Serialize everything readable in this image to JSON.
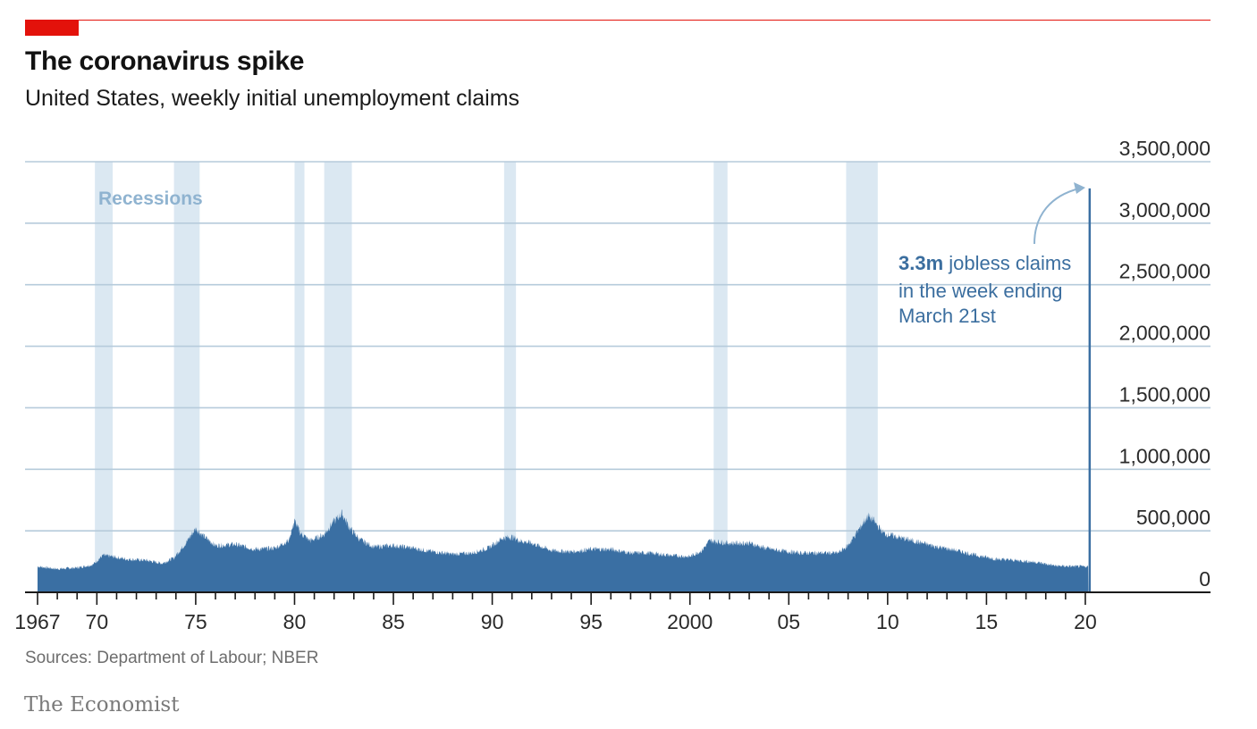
{
  "header": {
    "title": "The coronavirus spike",
    "subtitle": "United States, weekly initial unemployment claims"
  },
  "footer": {
    "source": "Sources: Department of Labour; NBER",
    "brand": "The Economist"
  },
  "colors": {
    "accent": "#e3120b",
    "series": "#3a6fa3",
    "recession": "#dbe8f2",
    "annotation": "#3b6e9f",
    "recession_label": "#8fb3d0",
    "grid": "#b6cbdb"
  },
  "chart_data": {
    "type": "area",
    "ylim": [
      0,
      3500000
    ],
    "xlim": [
      1967.0,
      2020.25
    ],
    "yticks": [
      0,
      500000,
      1000000,
      1500000,
      2000000,
      2500000,
      3000000,
      3500000
    ],
    "ytick_labels": [
      "0",
      "500,000",
      "1,000,000",
      "1,500,000",
      "2,000,000",
      "2,500,000",
      "3,000,000",
      "3,500,000"
    ],
    "xtick_labels": [
      {
        "x": 1967,
        "label": "1967"
      },
      {
        "x": 1970,
        "label": "70"
      },
      {
        "x": 1975,
        "label": "75"
      },
      {
        "x": 1980,
        "label": "80"
      },
      {
        "x": 1985,
        "label": "85"
      },
      {
        "x": 1990,
        "label": "90"
      },
      {
        "x": 1995,
        "label": "95"
      },
      {
        "x": 2000,
        "label": "2000"
      },
      {
        "x": 2005,
        "label": "05"
      },
      {
        "x": 2010,
        "label": "10"
      },
      {
        "x": 2015,
        "label": "15"
      },
      {
        "x": 2020,
        "label": "20"
      }
    ],
    "recessions": [
      [
        1969.9,
        1970.8
      ],
      [
        1973.9,
        1975.2
      ],
      [
        1980.0,
        1980.5
      ],
      [
        1981.5,
        1982.9
      ],
      [
        1990.6,
        1991.2
      ],
      [
        2001.2,
        2001.9
      ],
      [
        2007.9,
        2009.5
      ]
    ],
    "recession_label": "Recessions",
    "series": [
      {
        "x": [
          1967.0,
          1968.0,
          1969.0,
          1969.8,
          1970.3,
          1970.8,
          1971.5,
          1972.5,
          1973.3,
          1973.9,
          1974.5,
          1975.0,
          1975.3,
          1976.0,
          1977.0,
          1978.0,
          1979.0,
          1979.7,
          1980.0,
          1980.3,
          1980.8,
          1981.5,
          1981.9,
          1982.4,
          1982.8,
          1983.3,
          1984.0,
          1985.0,
          1986.0,
          1987.0,
          1988.0,
          1989.0,
          1989.8,
          1990.5,
          1991.0,
          1991.4,
          1992.0,
          1993.0,
          1994.0,
          1995.0,
          1996.0,
          1997.0,
          1998.0,
          1999.0,
          2000.0,
          2000.6,
          2001.0,
          2001.4,
          2002.0,
          2003.0,
          2003.8,
          2004.5,
          2005.5,
          2006.5,
          2007.5,
          2008.0,
          2008.5,
          2009.0,
          2009.3,
          2009.8,
          2010.5,
          2011.5,
          2012.5,
          2013.5,
          2014.5,
          2015.5,
          2016.5,
          2017.5,
          2018.5,
          2019.5,
          2020.15
        ],
        "values": [
          210000,
          190000,
          200000,
          225000,
          300000,
          290000,
          270000,
          260000,
          235000,
          280000,
          400000,
          520000,
          470000,
          380000,
          390000,
          350000,
          360000,
          420000,
          580000,
          480000,
          420000,
          470000,
          560000,
          640000,
          520000,
          430000,
          370000,
          380000,
          360000,
          330000,
          310000,
          320000,
          360000,
          440000,
          450000,
          420000,
          400000,
          340000,
          330000,
          350000,
          350000,
          320000,
          320000,
          300000,
          290000,
          340000,
          420000,
          410000,
          400000,
          400000,
          360000,
          340000,
          320000,
          320000,
          320000,
          380000,
          500000,
          620000,
          580000,
          480000,
          450000,
          410000,
          370000,
          340000,
          300000,
          270000,
          260000,
          245000,
          215000,
          210000,
          210000
        ]
      }
    ],
    "latest": {
      "x": 2020.22,
      "value": 3283000
    },
    "annotation": {
      "bold": "3.3m",
      "line1": " jobless claims",
      "line2": "in the week ending",
      "line3": "March 21st"
    }
  }
}
